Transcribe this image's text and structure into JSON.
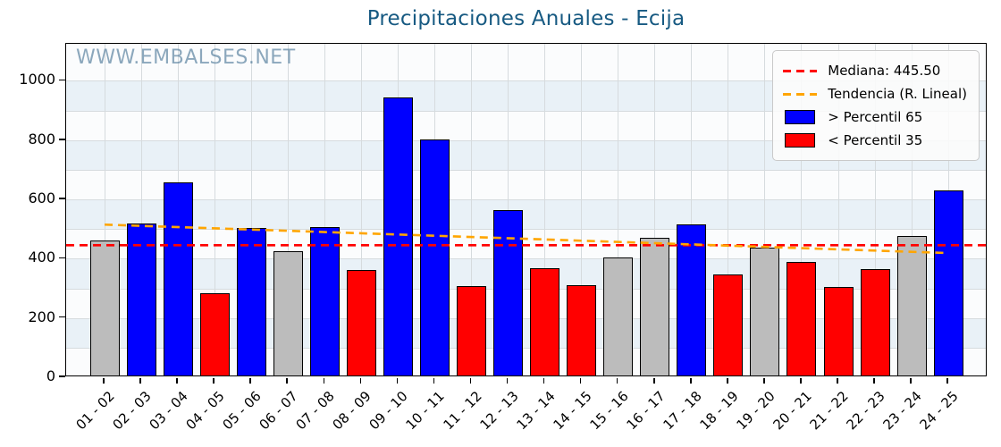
{
  "header": {
    "title": "Precipitaciones Anuales - Ecija"
  },
  "watermark": "WWW.EMBALSES.NET",
  "legend": {
    "median_label": "Mediana: 445.50",
    "trend_label": "Tendencia (R. Lineal)",
    "above_label": "> Percentil 65",
    "below_label": "< Percentil 35"
  },
  "chart_data": {
    "type": "bar",
    "title": "Precipitaciones Anuales - Ecija",
    "xlabel": "",
    "ylabel": "",
    "ylim": [
      0,
      1125
    ],
    "yticks": [
      0,
      200,
      400,
      600,
      800,
      1000
    ],
    "grid": true,
    "legend_position": "upper-right",
    "categories": [
      "01 - 02",
      "02 - 03",
      "03 - 04",
      "04 - 05",
      "05 - 06",
      "06 - 07",
      "07 - 08",
      "08 - 09",
      "09 - 10",
      "10 - 11",
      "11 - 12",
      "12 - 13",
      "13 - 14",
      "14 - 15",
      "15 - 16",
      "16 - 17",
      "17 - 18",
      "18 - 19",
      "19 - 20",
      "20 - 21",
      "21 - 22",
      "22 - 23",
      "23 - 24",
      "24 - 25"
    ],
    "values": [
      455,
      513,
      653,
      277,
      498,
      418,
      502,
      355,
      937,
      795,
      303,
      557,
      363,
      306,
      399,
      466,
      510,
      342,
      431,
      382,
      298,
      359,
      470,
      623
    ],
    "bar_classes": [
      "mid",
      "above",
      "above",
      "below",
      "above",
      "mid",
      "above",
      "below",
      "above",
      "above",
      "below",
      "above",
      "below",
      "below",
      "mid",
      "mid",
      "above",
      "below",
      "mid",
      "below",
      "below",
      "below",
      "mid",
      "above"
    ],
    "median": 445.5,
    "trend": {
      "start_value": 515,
      "end_value": 419
    },
    "colors": {
      "above": "#0000ff",
      "below": "#ff0000",
      "mid": "#bcbcbc",
      "median_line": "#ff0000",
      "trend_line": "#ffa500",
      "stripe": "#e9f1f7",
      "grid": "#d6dbde",
      "title": "#175a82",
      "watermark": "#46729e"
    },
    "stripe_bands": [
      [
        100,
        200
      ],
      [
        300,
        400
      ],
      [
        500,
        600
      ],
      [
        700,
        800
      ],
      [
        900,
        1000
      ]
    ]
  }
}
